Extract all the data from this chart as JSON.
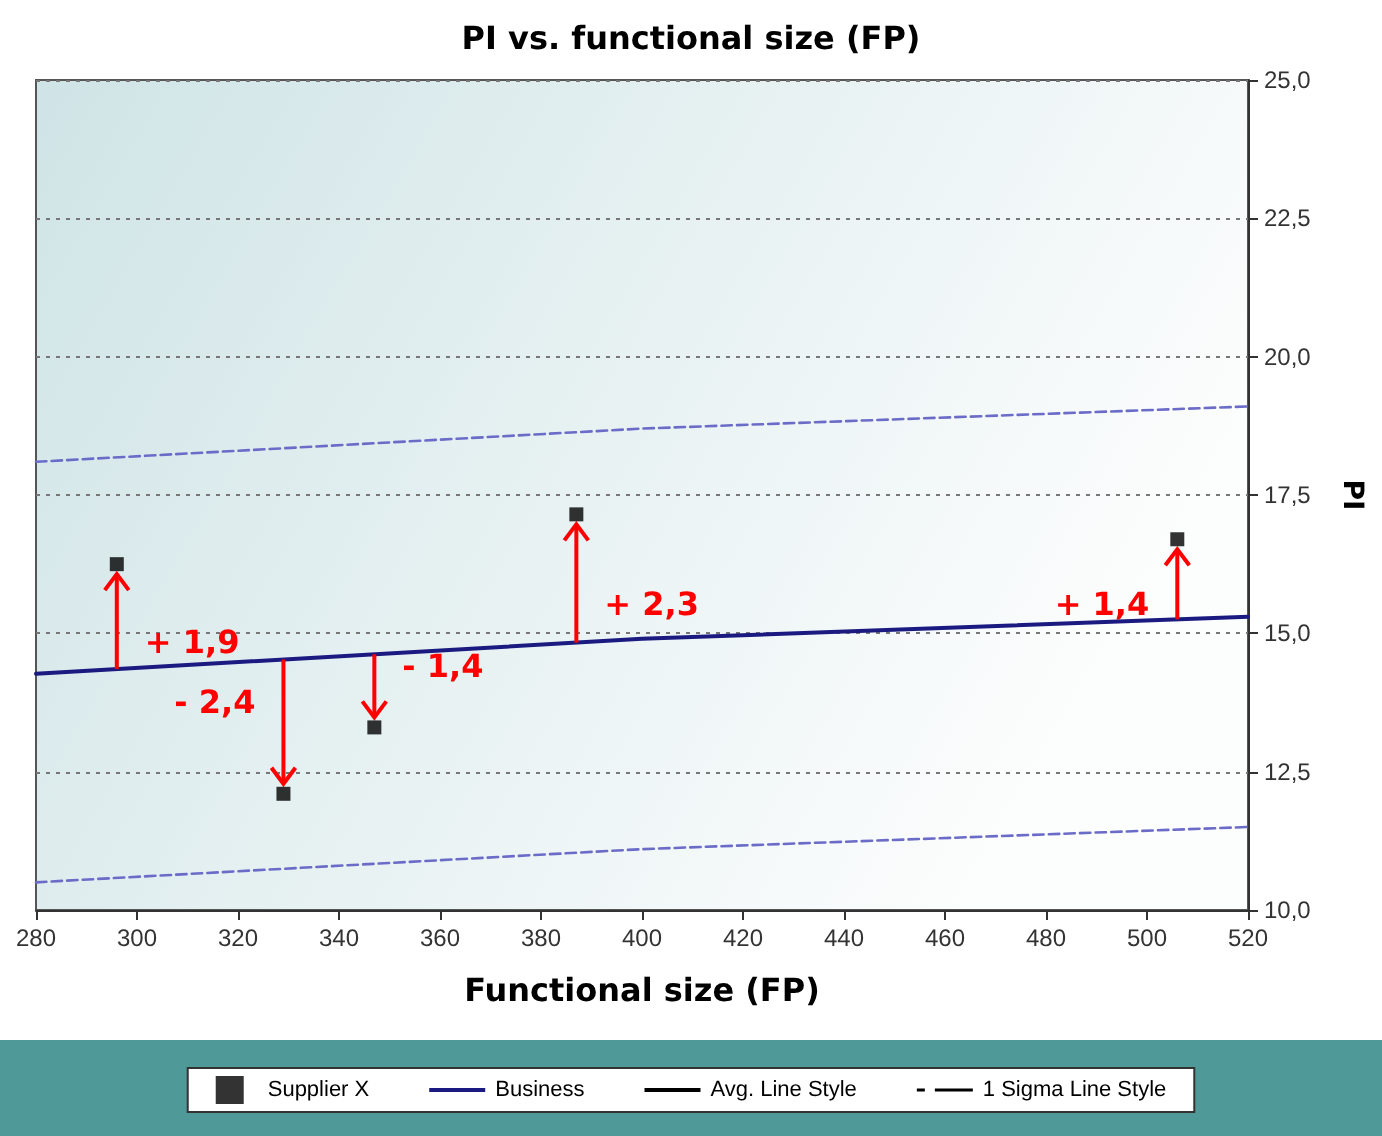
{
  "chart_data": {
    "type": "scatter",
    "title": "PI vs. functional size (FP)",
    "xlabel": "Functional size (FP)",
    "ylabel": "PI",
    "xlim": [
      280,
      520
    ],
    "xticks": [
      280,
      300,
      320,
      340,
      360,
      380,
      400,
      420,
      440,
      460,
      480,
      500,
      520
    ],
    "ylim": [
      10,
      25
    ],
    "yticks": [
      {
        "value": 10,
        "label": "10,0"
      },
      {
        "value": 12.5,
        "label": "12,5"
      },
      {
        "value": 15,
        "label": "15,0"
      },
      {
        "value": 17.5,
        "label": "17,5"
      },
      {
        "value": 20,
        "label": "20,0"
      },
      {
        "value": 22.5,
        "label": "22,5"
      },
      {
        "value": 25,
        "label": "25,0"
      }
    ],
    "grid": "y",
    "legend": "bottom",
    "series": [
      {
        "name": "Supplier X",
        "color": "#000000",
        "marker": "square",
        "x": [
          296,
          329,
          347,
          387,
          506
        ],
        "values": [
          16.25,
          12.1,
          13.3,
          17.15,
          16.7
        ]
      },
      {
        "type": "line",
        "name": "Business",
        "color": "#1a1a80",
        "line_style": "solid",
        "marker": "none",
        "x": [
          280,
          400,
          520
        ],
        "values": [
          14.27,
          14.9,
          15.3
        ]
      },
      {
        "type": "line",
        "color": "#6b6bc8",
        "line_style": "dashed",
        "marker": "none",
        "x": [
          280,
          400,
          520
        ],
        "values": [
          18.1,
          18.7,
          19.1
        ]
      },
      {
        "type": "line",
        "color": "#6b6bc8",
        "line_style": "dashed",
        "marker": "none",
        "x": [
          280,
          400,
          520
        ],
        "values": [
          10.5,
          11.1,
          11.5
        ]
      },
      {
        "type": "line",
        "name": "Avg. Line Style",
        "color": "#000000",
        "line_style": "solid",
        "marker": "none"
      },
      {
        "type": "line",
        "name": "1 Sigma Line Style",
        "color": "#000000",
        "line_style": "dashed",
        "marker": "none"
      }
    ],
    "annotations": [
      {
        "text": "+ 1,9",
        "x": 296,
        "y": 16.25
      },
      {
        "text": "- 2,4",
        "x": 329,
        "y": 12.1
      },
      {
        "text": "- 1,4",
        "x": 347,
        "y": 13.3
      },
      {
        "text": "+ 2,3",
        "x": 387,
        "y": 17.15
      },
      {
        "text": "+ 1,4",
        "x": 506,
        "y": 16.7
      }
    ]
  }
}
